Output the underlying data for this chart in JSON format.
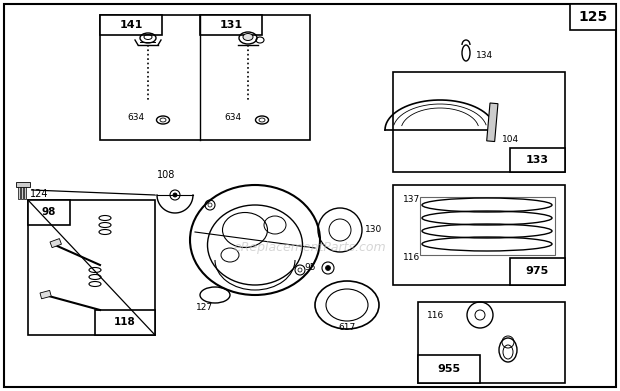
{
  "bg": "#ffffff",
  "page_num": "125",
  "watermark": "eReplacementParts.com",
  "figsize": [
    6.2,
    3.91
  ],
  "dpi": 100
}
